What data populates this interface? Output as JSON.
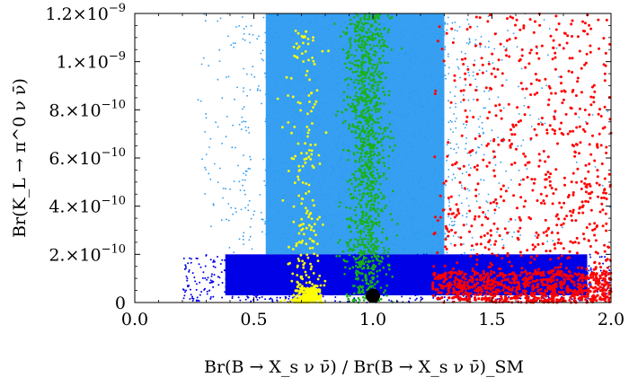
{
  "chart_data": {
    "type": "scatter",
    "xlim": [
      0.0,
      2.0
    ],
    "ylim": [
      0,
      1.2e-09
    ],
    "x_ticks": [
      {
        "value": 0.0,
        "label": "0.0"
      },
      {
        "value": 0.5,
        "label": "0.5"
      },
      {
        "value": 1.0,
        "label": "1.0"
      },
      {
        "value": 1.5,
        "label": "1.5"
      },
      {
        "value": 2.0,
        "label": "2.0"
      }
    ],
    "y_ticks": [
      {
        "value": 0,
        "label": "0",
        "mantissa": "",
        "exponent": ""
      },
      {
        "value": 2e-10,
        "label": "2.×10^-10",
        "mantissa": "2.×10",
        "exponent": "−10"
      },
      {
        "value": 4e-10,
        "label": "4.×10^-10",
        "mantissa": "4.×10",
        "exponent": "−10"
      },
      {
        "value": 6e-10,
        "label": "6.×10^-10",
        "mantissa": "6.×10",
        "exponent": "−10"
      },
      {
        "value": 8e-10,
        "label": "8.×10^-10",
        "mantissa": "8.×10",
        "exponent": "−10"
      },
      {
        "value": 1e-09,
        "label": "1.×10^-9",
        "mantissa": "1.×10",
        "exponent": "−9"
      },
      {
        "value": 1.2e-09,
        "label": "1.2×10^-9",
        "mantissa": "1.2×10",
        "exponent": "−9"
      }
    ],
    "xlabel": "Br(B → X_s ν ν̄) / Br(B → X_s ν ν̄)_SM",
    "ylabel": "Br(K_L → π^0 ν ν̄)",
    "grid": false,
    "legend": "none",
    "series": [
      {
        "color": "#2b9af0",
        "marker_size": "small",
        "description_of_region": "dense uniform band",
        "x_range": [
          0.25,
          2.0
        ],
        "y_range": [
          2e-10,
          1.2e-09
        ],
        "core_x_range": [
          0.55,
          1.3
        ]
      },
      {
        "color": "#0000e6",
        "marker_size": "small",
        "x_range": [
          0.2,
          2.0
        ],
        "y_range": [
          0,
          2e-10
        ]
      },
      {
        "color": "#19b219",
        "marker_size": "medium",
        "x_range": [
          0.87,
          1.08
        ],
        "y_range": [
          0,
          1.2e-09
        ]
      },
      {
        "color": "#ffff00",
        "marker_size": "medium",
        "x_range": [
          0.65,
          0.8
        ],
        "y_range": [
          0,
          1.2e-09
        ]
      },
      {
        "color": "#ff0000",
        "marker_size": "medium",
        "x_range": [
          1.25,
          2.0
        ],
        "y_range": [
          0,
          1.2e-09
        ]
      }
    ],
    "highlight_point": {
      "x": 1.0,
      "y": 2.8e-11,
      "color": "#000000",
      "label": ""
    }
  }
}
